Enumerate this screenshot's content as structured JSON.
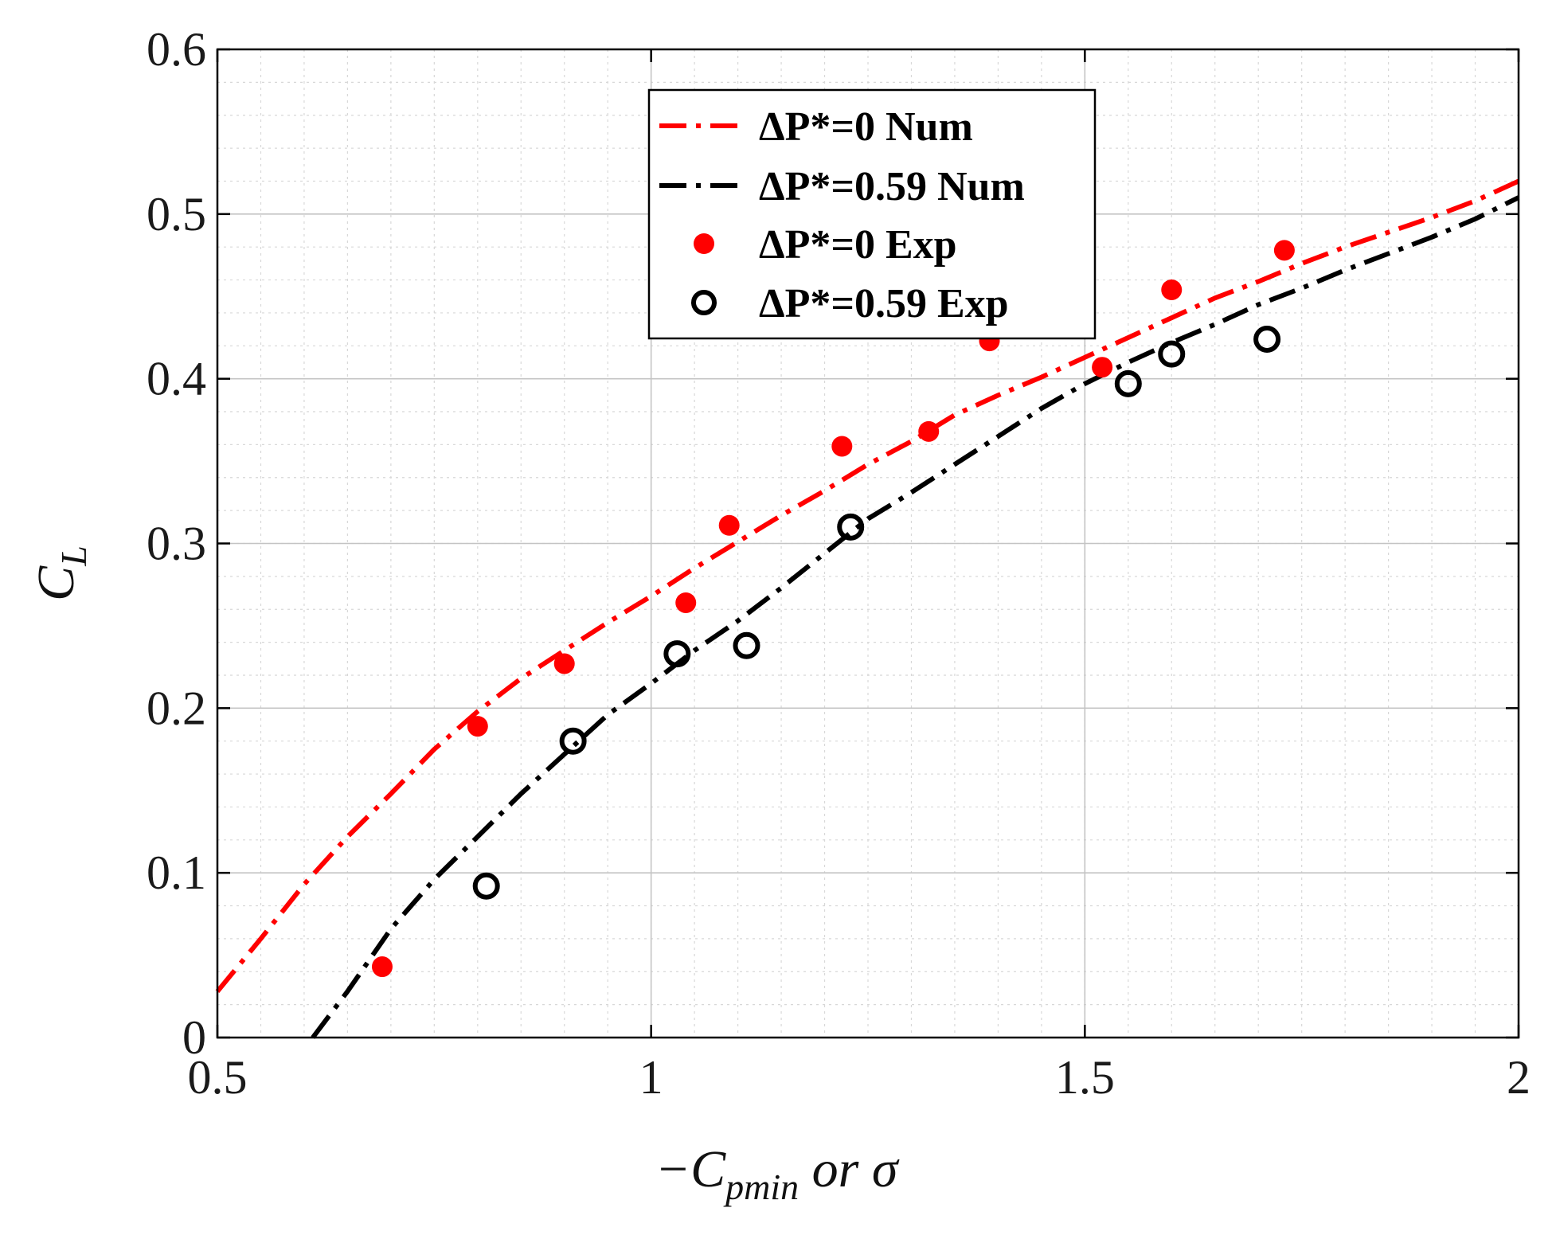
{
  "chart_data": {
    "type": "line",
    "xlabel": {
      "main": "−C",
      "sub": "pmin",
      "rest": " or σ"
    },
    "ylabel": {
      "main": "C",
      "sub": "L"
    },
    "xlim": [
      0.5,
      2
    ],
    "ylim": [
      0,
      0.6
    ],
    "xticks": [
      0.5,
      1,
      1.5,
      2
    ],
    "xtick_labels": [
      "0.5",
      "1",
      "1.5",
      "2"
    ],
    "yticks": [
      0,
      0.1,
      0.2,
      0.3,
      0.4,
      0.5,
      0.6
    ],
    "ytick_labels": [
      "0",
      "0.1",
      "0.2",
      "0.3",
      "0.4",
      "0.5",
      "0.6"
    ],
    "grid": true,
    "minor_grid": true,
    "legend_position": "top-center",
    "series": [
      {
        "name": "ΔP*=0 Num",
        "kind": "line",
        "style": "dash-dot",
        "color": "#ff0000",
        "x": [
          0.5,
          0.55,
          0.6,
          0.65,
          0.7,
          0.75,
          0.8,
          0.85,
          0.9,
          0.95,
          1.0,
          1.05,
          1.1,
          1.15,
          1.2,
          1.25,
          1.3,
          1.35,
          1.4,
          1.45,
          1.5,
          1.55,
          1.6,
          1.65,
          1.7,
          1.75,
          1.8,
          1.85,
          1.9,
          1.95,
          2.0
        ],
        "y": [
          0.028,
          0.06,
          0.093,
          0.122,
          0.148,
          0.175,
          0.198,
          0.218,
          0.235,
          0.252,
          0.268,
          0.285,
          0.301,
          0.317,
          0.332,
          0.348,
          0.362,
          0.378,
          0.39,
          0.401,
          0.413,
          0.425,
          0.437,
          0.449,
          0.459,
          0.47,
          0.48,
          0.489,
          0.498,
          0.508,
          0.52
        ]
      },
      {
        "name": "ΔP*=0.59 Num",
        "kind": "line",
        "style": "dash-dot",
        "color": "#000000",
        "x": [
          0.61,
          0.65,
          0.7,
          0.75,
          0.8,
          0.85,
          0.9,
          0.95,
          1.0,
          1.05,
          1.1,
          1.15,
          1.2,
          1.25,
          1.3,
          1.35,
          1.4,
          1.45,
          1.5,
          1.55,
          1.6,
          1.65,
          1.7,
          1.75,
          1.8,
          1.85,
          1.9,
          1.95,
          2.0
        ],
        "y": [
          0.0,
          0.028,
          0.066,
          0.096,
          0.122,
          0.148,
          0.172,
          0.196,
          0.215,
          0.235,
          0.253,
          0.273,
          0.294,
          0.315,
          0.331,
          0.348,
          0.365,
          0.382,
          0.397,
          0.41,
          0.422,
          0.433,
          0.445,
          0.455,
          0.466,
          0.476,
          0.486,
          0.497,
          0.51
        ]
      },
      {
        "name": "ΔP*=0 Exp",
        "kind": "scatter",
        "marker": "filled-circle",
        "color": "#ff0000",
        "x": [
          0.69,
          0.8,
          0.9,
          1.04,
          1.09,
          1.22,
          1.32,
          1.39,
          1.52,
          1.6,
          1.73
        ],
        "y": [
          0.043,
          0.189,
          0.227,
          0.264,
          0.311,
          0.359,
          0.368,
          0.423,
          0.407,
          0.454,
          0.478
        ]
      },
      {
        "name": "ΔP*=0.59 Exp",
        "kind": "scatter",
        "marker": "open-circle",
        "color": "#000000",
        "x": [
          0.81,
          0.91,
          1.03,
          1.11,
          1.23,
          1.55,
          1.6,
          1.71
        ],
        "y": [
          0.092,
          0.18,
          0.233,
          0.238,
          0.31,
          0.397,
          0.415,
          0.424
        ]
      }
    ]
  }
}
